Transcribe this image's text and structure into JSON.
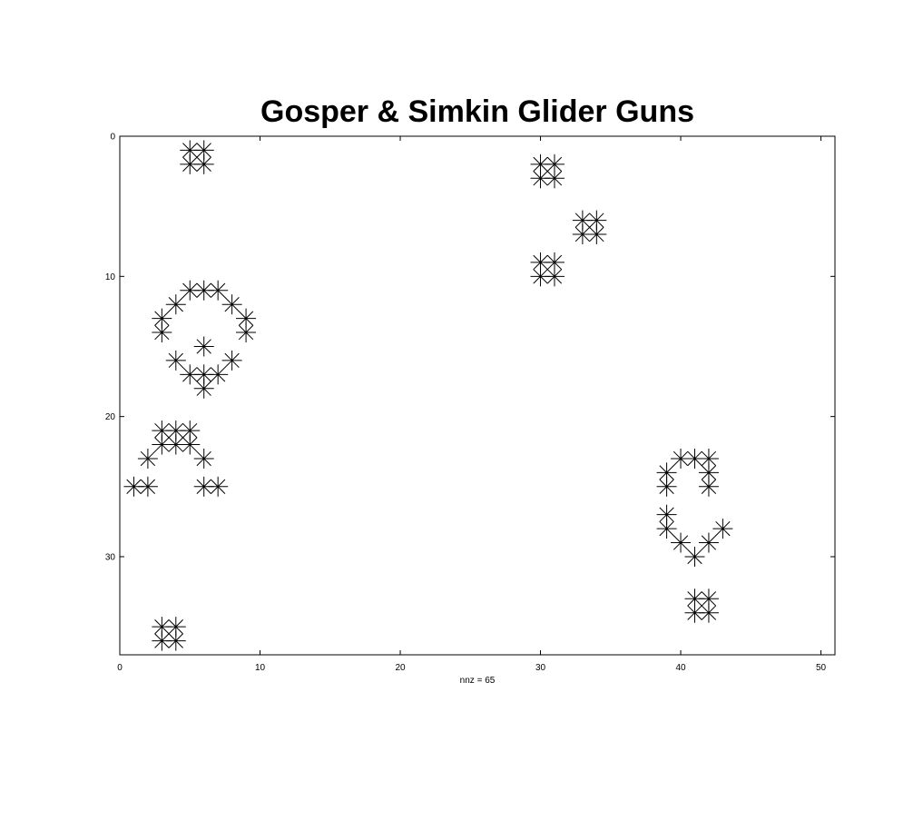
{
  "chart_data": {
    "type": "scatter",
    "title": "Gosper & Simkin Glider Guns",
    "xlabel": "nnz = 65",
    "ylabel": "",
    "xlim": [
      0,
      51
    ],
    "ylim": [
      0,
      37
    ],
    "y_reversed": true,
    "x_ticks": [
      0,
      10,
      20,
      30,
      40,
      50
    ],
    "x_tick_labels": [
      "0",
      "10",
      "20",
      "30",
      "40",
      "50"
    ],
    "y_ticks": [
      0,
      10,
      20,
      30
    ],
    "y_tick_labels": [
      "0",
      "10",
      "20",
      "30"
    ],
    "grid": false,
    "marker": "asterisk",
    "marker_color": "#000000",
    "series": [
      {
        "points": [
          [
            5,
            1
          ],
          [
            6,
            1
          ],
          [
            5,
            2
          ],
          [
            6,
            2
          ],
          [
            5,
            11
          ],
          [
            6,
            11
          ],
          [
            7,
            11
          ],
          [
            4,
            12
          ],
          [
            8,
            12
          ],
          [
            3,
            13
          ],
          [
            9,
            13
          ],
          [
            3,
            14
          ],
          [
            9,
            14
          ],
          [
            6,
            15
          ],
          [
            4,
            16
          ],
          [
            8,
            16
          ],
          [
            5,
            17
          ],
          [
            6,
            17
          ],
          [
            7,
            17
          ],
          [
            6,
            18
          ],
          [
            3,
            21
          ],
          [
            4,
            21
          ],
          [
            5,
            21
          ],
          [
            3,
            22
          ],
          [
            4,
            22
          ],
          [
            5,
            22
          ],
          [
            2,
            23
          ],
          [
            6,
            23
          ],
          [
            1,
            25
          ],
          [
            2,
            25
          ],
          [
            6,
            25
          ],
          [
            7,
            25
          ],
          [
            3,
            35
          ],
          [
            4,
            35
          ],
          [
            3,
            36
          ],
          [
            4,
            36
          ],
          [
            30,
            2
          ],
          [
            31,
            2
          ],
          [
            30,
            3
          ],
          [
            31,
            3
          ],
          [
            33,
            6
          ],
          [
            34,
            6
          ],
          [
            33,
            7
          ],
          [
            34,
            7
          ],
          [
            30,
            9
          ],
          [
            31,
            9
          ],
          [
            30,
            10
          ],
          [
            31,
            10
          ],
          [
            40,
            23
          ],
          [
            41,
            23
          ],
          [
            42,
            23
          ],
          [
            39,
            24
          ],
          [
            42,
            24
          ],
          [
            39,
            25
          ],
          [
            42,
            25
          ],
          [
            39,
            27
          ],
          [
            39,
            28
          ],
          [
            43,
            28
          ],
          [
            40,
            29
          ],
          [
            42,
            29
          ],
          [
            41,
            30
          ],
          [
            41,
            33
          ],
          [
            42,
            33
          ],
          [
            41,
            34
          ],
          [
            42,
            34
          ]
        ]
      }
    ]
  }
}
